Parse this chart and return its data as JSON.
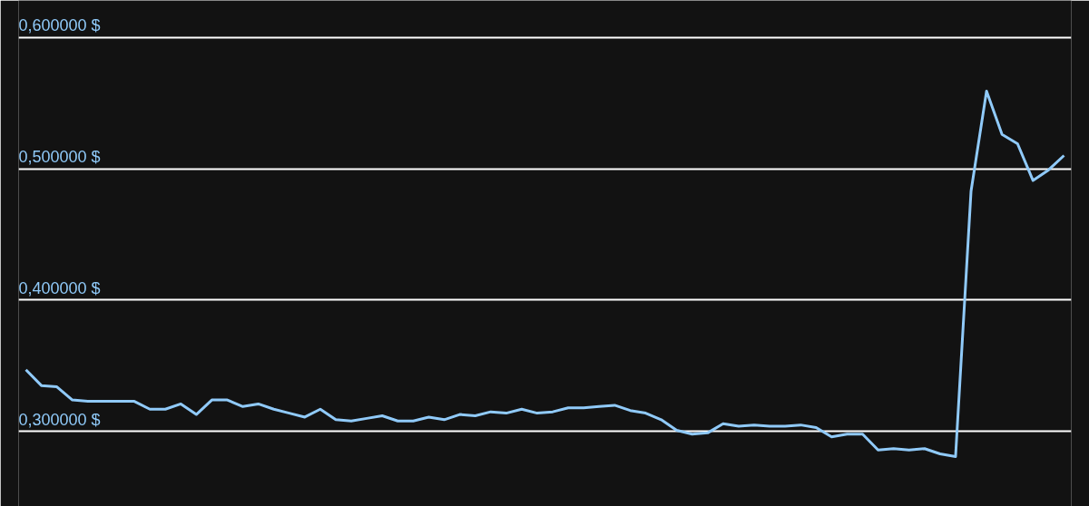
{
  "chart_data": {
    "type": "line",
    "categories": [
      null,
      null,
      null,
      null,
      null,
      null,
      null,
      null,
      null,
      null,
      null,
      null,
      null,
      null,
      null,
      null,
      null,
      null,
      null,
      null,
      null,
      null,
      null,
      null,
      null,
      null,
      null,
      null,
      null,
      null,
      null,
      null,
      null,
      null,
      null,
      null,
      null,
      null,
      null,
      null,
      null,
      null,
      null,
      null,
      null,
      null,
      null,
      null,
      null,
      null,
      null,
      null,
      null,
      null,
      null,
      null,
      null,
      null,
      null,
      null,
      null,
      null,
      null,
      null,
      null,
      null,
      null,
      null
    ],
    "series": [
      {
        "color": "#90caf9",
        "values": [
          0.347,
          0.335,
          0.334,
          0.324,
          0.323,
          0.323,
          0.323,
          0.323,
          0.317,
          0.317,
          0.321,
          0.313,
          0.324,
          0.324,
          0.319,
          0.321,
          0.317,
          0.314,
          0.311,
          0.317,
          0.309,
          0.308,
          0.31,
          0.312,
          0.308,
          0.308,
          0.311,
          0.309,
          0.313,
          0.312,
          0.315,
          0.314,
          0.317,
          0.314,
          0.315,
          0.318,
          0.318,
          0.319,
          0.32,
          0.316,
          0.314,
          0.309,
          0.301,
          0.298,
          0.299,
          0.306,
          0.304,
          0.305,
          0.304,
          0.304,
          0.305,
          0.303,
          0.296,
          0.298,
          0.298,
          0.286,
          0.287,
          0.286,
          0.287,
          0.283,
          0.281,
          0.483,
          0.559,
          0.526,
          0.519,
          0.491,
          0.499,
          0.51
        ]
      }
    ],
    "ylim": [
      0.243,
      0.628
    ],
    "yticks": [
      {
        "value": 0.3,
        "label": "0,300000 $"
      },
      {
        "value": 0.4,
        "label": "0,400000 $"
      },
      {
        "value": 0.5,
        "label": "0,500000 $"
      },
      {
        "value": 0.6,
        "label": "0,600000 $"
      }
    ],
    "grid": "y",
    "marker": "none",
    "line_style": "solid",
    "tick_labels": "y"
  }
}
